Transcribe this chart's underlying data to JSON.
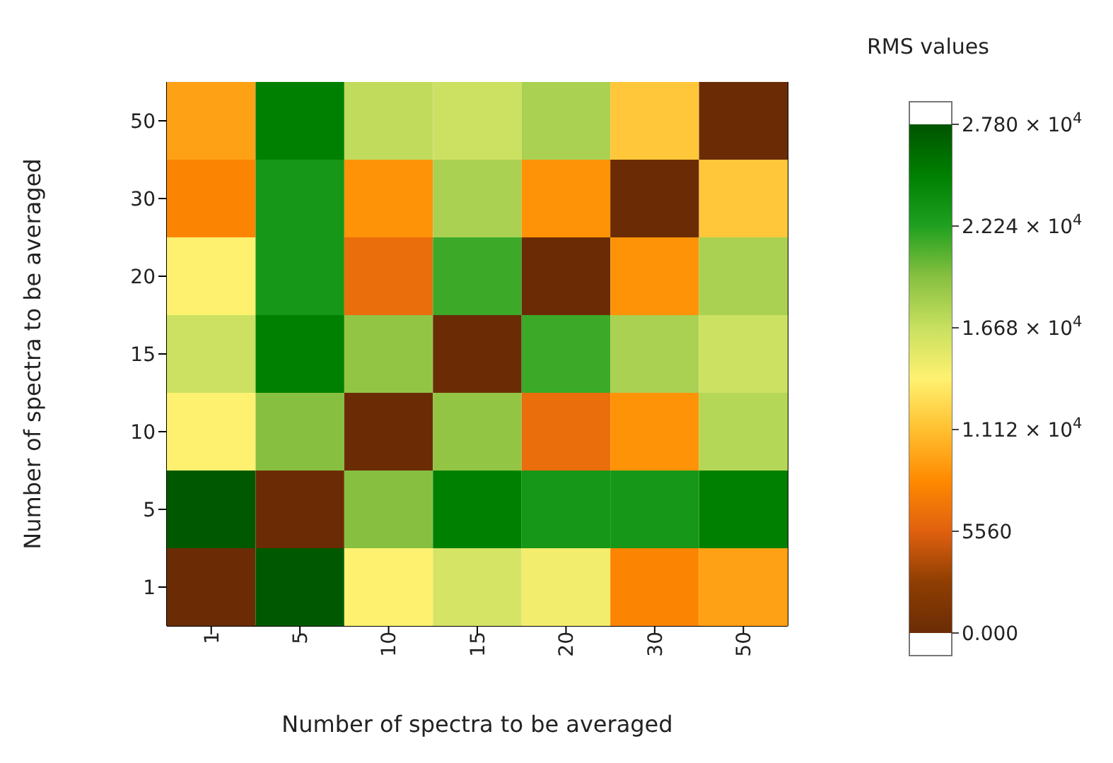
{
  "chart_data": {
    "type": "heatmap",
    "xlabel": "Number of spectra to be averaged",
    "ylabel": "Number of spectra to be averaged",
    "clabel": "RMS values",
    "categories": [
      "1",
      "5",
      "10",
      "15",
      "20",
      "30",
      "50"
    ],
    "y_categories": [
      "50",
      "30",
      "20",
      "15",
      "10",
      "5",
      "1"
    ],
    "cells": [
      [
        9500,
        25000,
        17000,
        16500,
        18000,
        11500,
        0
      ],
      [
        8000,
        23000,
        8800,
        18000,
        8800,
        0,
        11500
      ],
      [
        13900,
        23000,
        6500,
        21500,
        0,
        8800,
        18000
      ],
      [
        16500,
        25000,
        19000,
        0,
        21500,
        18000,
        16500
      ],
      [
        13900,
        19500,
        0,
        19000,
        6500,
        8800,
        17500
      ],
      [
        27500,
        0,
        19500,
        25000,
        23000,
        23000,
        25000
      ],
      [
        0,
        27500,
        13900,
        16000,
        14500,
        8000,
        9500
      ]
    ],
    "clim": [
      0,
      27800
    ],
    "cticks": [
      {
        "value": 0,
        "label": "0.000"
      },
      5560,
      {
        "value": 11120,
        "label": "1.112 × 10$^{4}$"
      },
      {
        "value": 16680,
        "label": "1.668 × 10$^{4}$"
      },
      {
        "value": 22240,
        "label": "2.224 × 10$^{4}$"
      },
      {
        "value": 27800,
        "label": "2.780 × 10$^{4}$"
      }
    ]
  }
}
